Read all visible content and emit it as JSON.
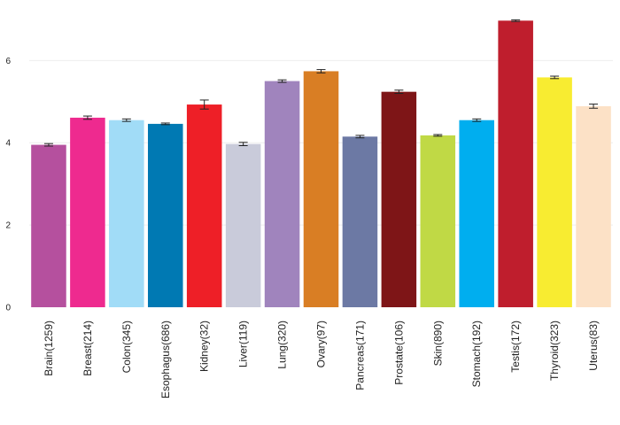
{
  "chart_data": {
    "type": "bar",
    "title": "",
    "xlabel": "",
    "ylabel": "",
    "ylim": [
      0,
      7.3
    ],
    "yticks": [
      0,
      2,
      4,
      6
    ],
    "grid": true,
    "legend": "none",
    "categories": [
      "Brain(1259)",
      "Breast(214)",
      "Colon(345)",
      "Esophagus(686)",
      "Kidney(32)",
      "Liver(119)",
      "Lung(320)",
      "Ovary(97)",
      "Pancreas(171)",
      "Prostate(106)",
      "Skin(890)",
      "Stomach(192)",
      "Testis(172)",
      "Thyroid(323)",
      "Uterus(83)"
    ],
    "values": [
      3.95,
      4.61,
      4.55,
      4.46,
      4.93,
      3.97,
      5.5,
      5.74,
      4.15,
      5.24,
      4.18,
      4.55,
      6.97,
      5.59,
      4.89
    ],
    "errors": [
      0.03,
      0.04,
      0.03,
      0.02,
      0.11,
      0.04,
      0.03,
      0.04,
      0.03,
      0.04,
      0.02,
      0.03,
      0.02,
      0.03,
      0.05
    ],
    "colors": [
      "#b5509e",
      "#ee2a8f",
      "#a1dcf7",
      "#0079b3",
      "#ee1f27",
      "#c9cbda",
      "#a084bd",
      "#d97e24",
      "#6c79a4",
      "#7e1517",
      "#c0d945",
      "#00aeef",
      "#bf1e2d",
      "#f8ec31",
      "#fce1c6"
    ]
  }
}
